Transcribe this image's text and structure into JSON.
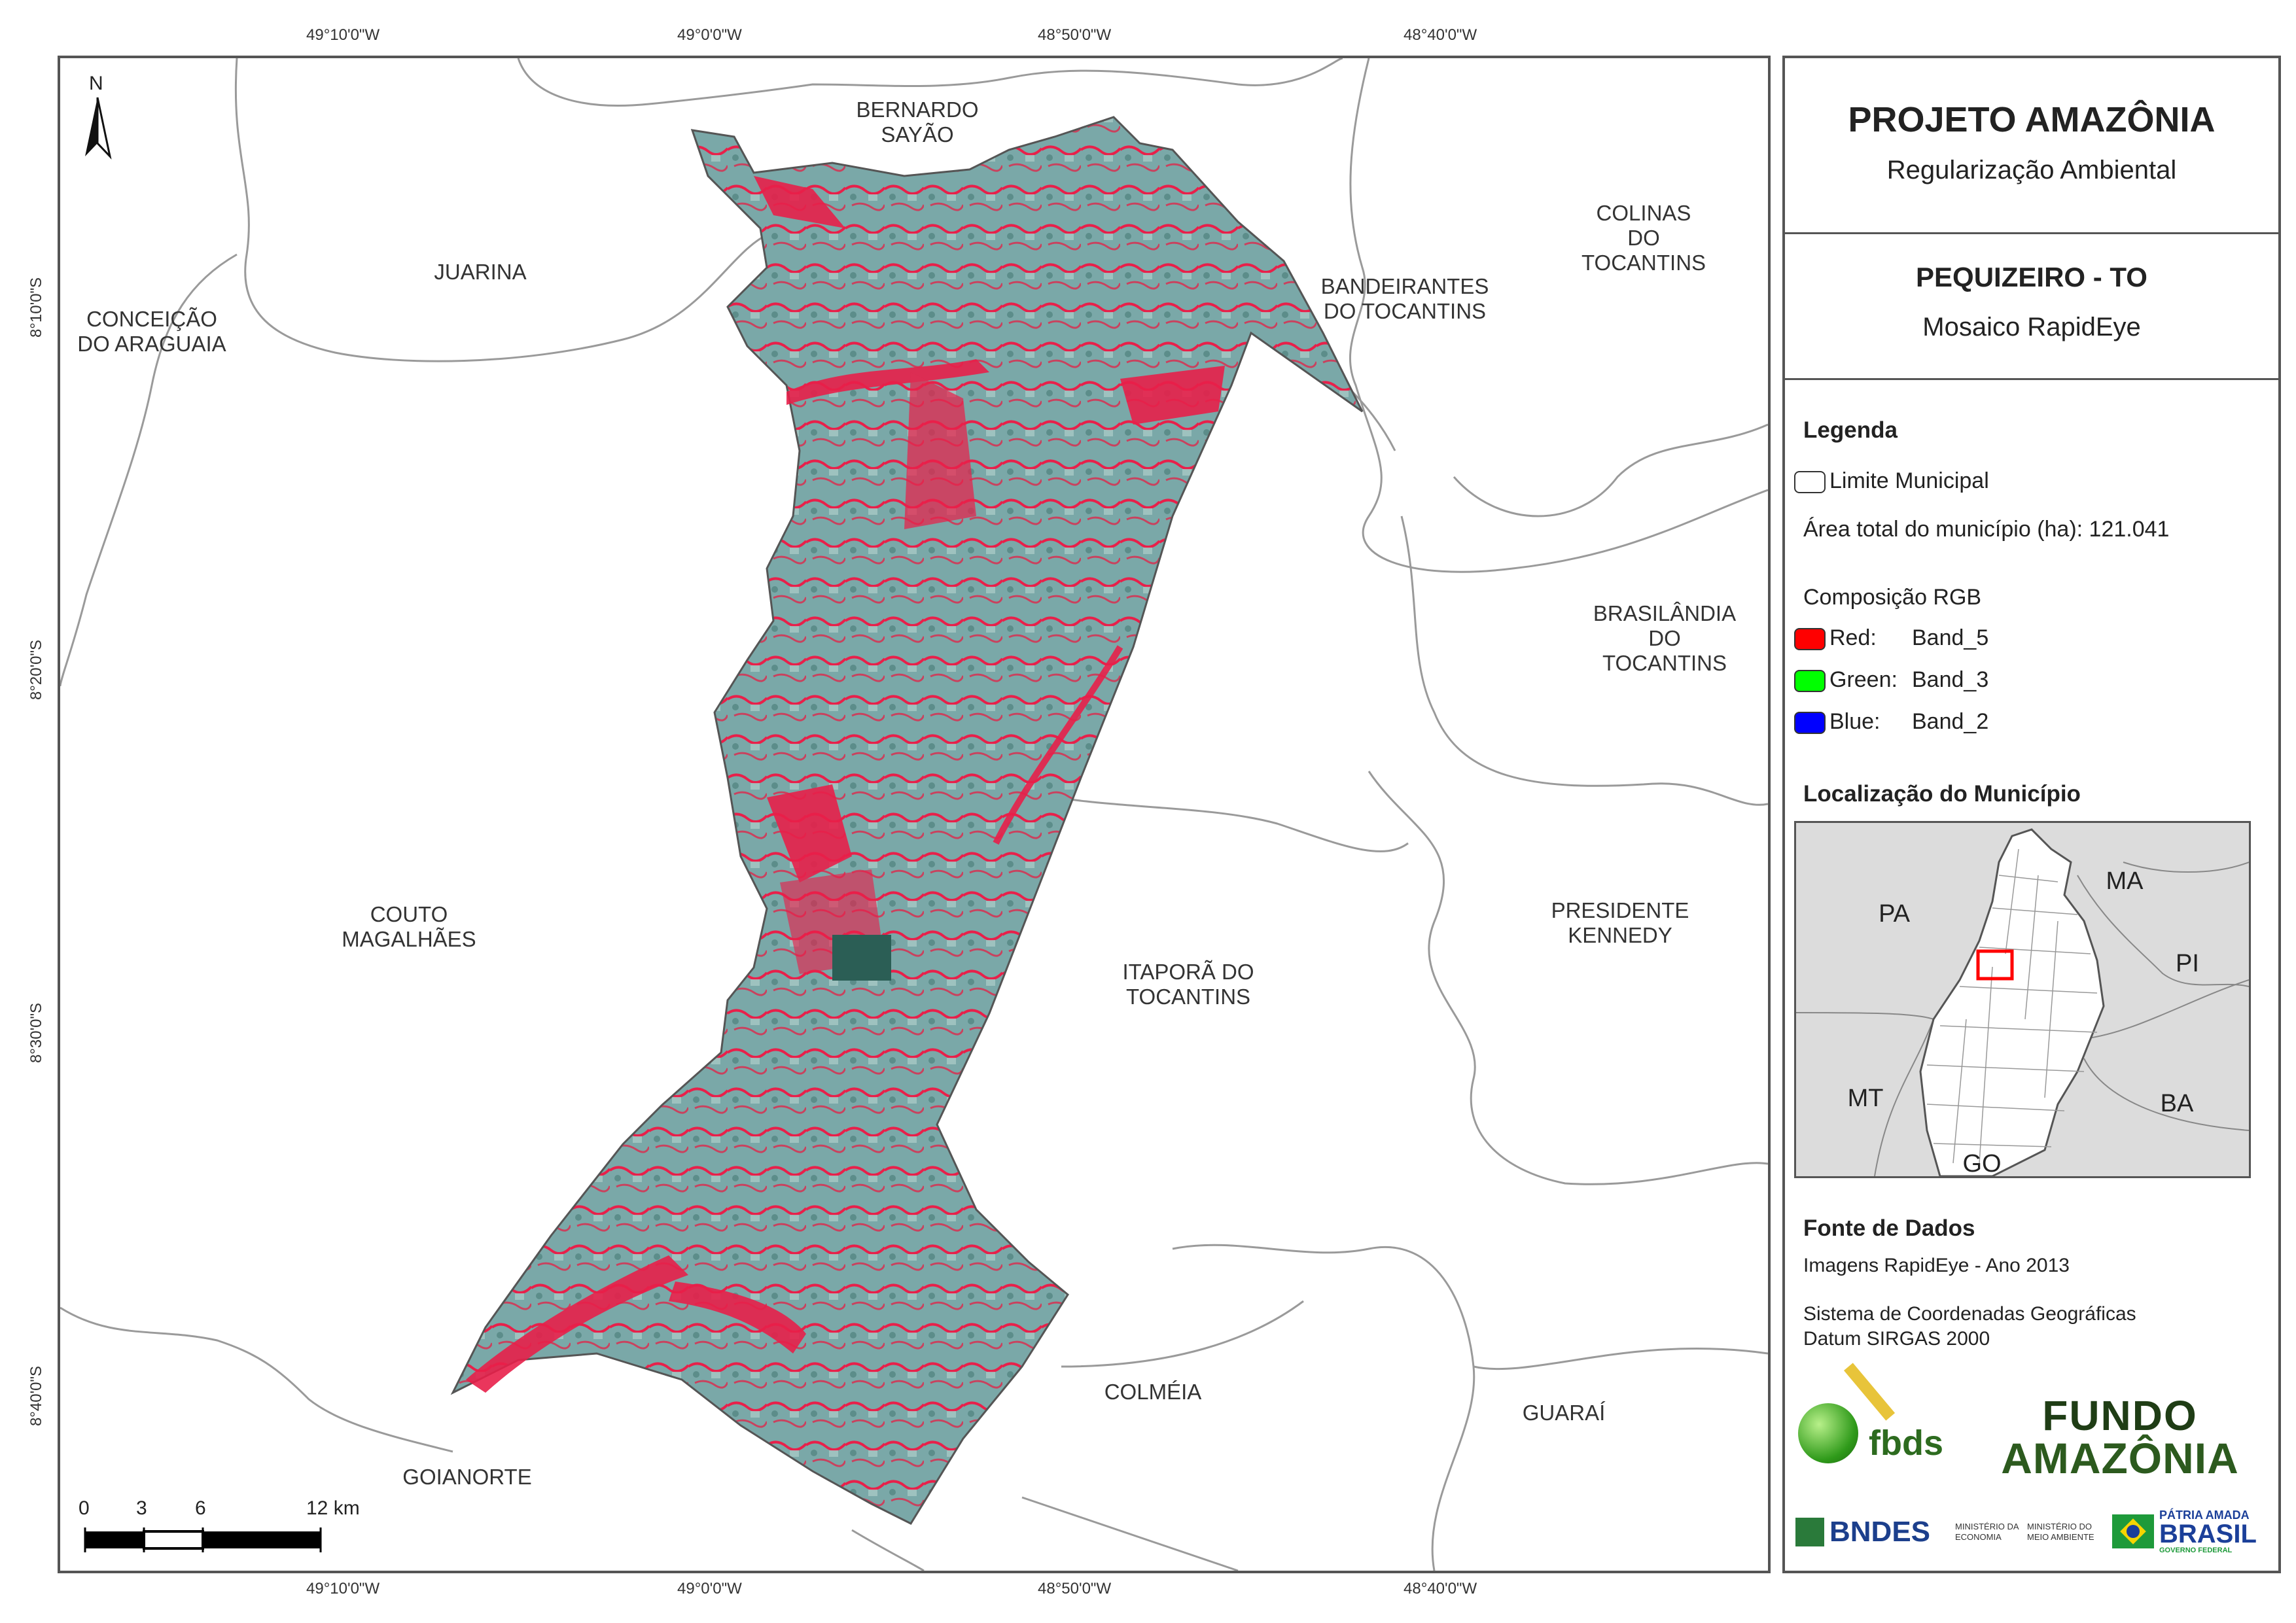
{
  "title": "PROJETO AMAZÔNIA",
  "subtitle": "Regularização Ambiental",
  "map_name": "PEQUIZEIRO - TO",
  "map_type": "Mosaico RapidEye",
  "legend": {
    "heading": "Legenda",
    "boundary_label": "Limite Municipal",
    "area_text": "Área total do município (ha): 121.041",
    "rgb_heading": "Composição RGB",
    "bands": [
      {
        "label": "Red:",
        "band": "Band_5",
        "color": "#ff0000"
      },
      {
        "label": "Green:",
        "band": "Band_3",
        "color": "#00ff00"
      },
      {
        "label": "Blue:",
        "band": "Band_2",
        "color": "#0000ff"
      }
    ]
  },
  "location": {
    "heading": "Localização do Município",
    "states": [
      "PA",
      "MA",
      "PI",
      "MT",
      "BA",
      "GO"
    ]
  },
  "sources": {
    "heading": "Fonte de Dados",
    "imagery": "Imagens RapidEye - Ano 2013",
    "crs_line1": "Sistema de Coordenadas Geográficas",
    "crs_line2": "Datum SIRGAS 2000"
  },
  "logos": {
    "fbds": "fbds",
    "fundo_line1": "FUNDO",
    "fundo_line2": "AMAZÔNIA",
    "bndes": "BNDES",
    "ministerio1": "MINISTÉRIO DA ECONOMIA",
    "ministerio2": "MINISTÉRIO DO MEIO AMBIENTE",
    "patria_line1": "PÁTRIA AMADA",
    "patria_line2": "BRASIL",
    "patria_line3": "GOVERNO FEDERAL"
  },
  "north_label": "N",
  "scale_labels": [
    "0",
    "3",
    "6",
    "12 km"
  ],
  "longitudes": [
    "49°10'0\"W",
    "49°0'0\"W",
    "48°50'0\"W",
    "48°40'0\"W"
  ],
  "latitudes": [
    "8°10'0\"S",
    "8°20'0\"S",
    "8°30'0\"S",
    "8°40'0\"S"
  ],
  "municipalities": [
    "BERNARDO\nSAYÃO",
    "JUARINA",
    "CONCEIÇÃO\nDO ARAGUAIA",
    "COLINAS DO\nTOCANTINS",
    "BANDEIRANTES\nDO TOCANTINS",
    "BRASILÂNDIA\nDO TOCANTINS",
    "COUTO\nMAGALHÃES",
    "PRESIDENTE\nKENNEDY",
    "ITAPORÃ DO\nTOCANTINS",
    "COLMÉIA",
    "GUARAÍ",
    "GOIANORTE"
  ],
  "colors": {
    "vegetation_red": "#e8204a",
    "cerrado_cyan": "#6fa9a8",
    "boundary": "#9a9a9a",
    "highlight": "#ff0000"
  }
}
